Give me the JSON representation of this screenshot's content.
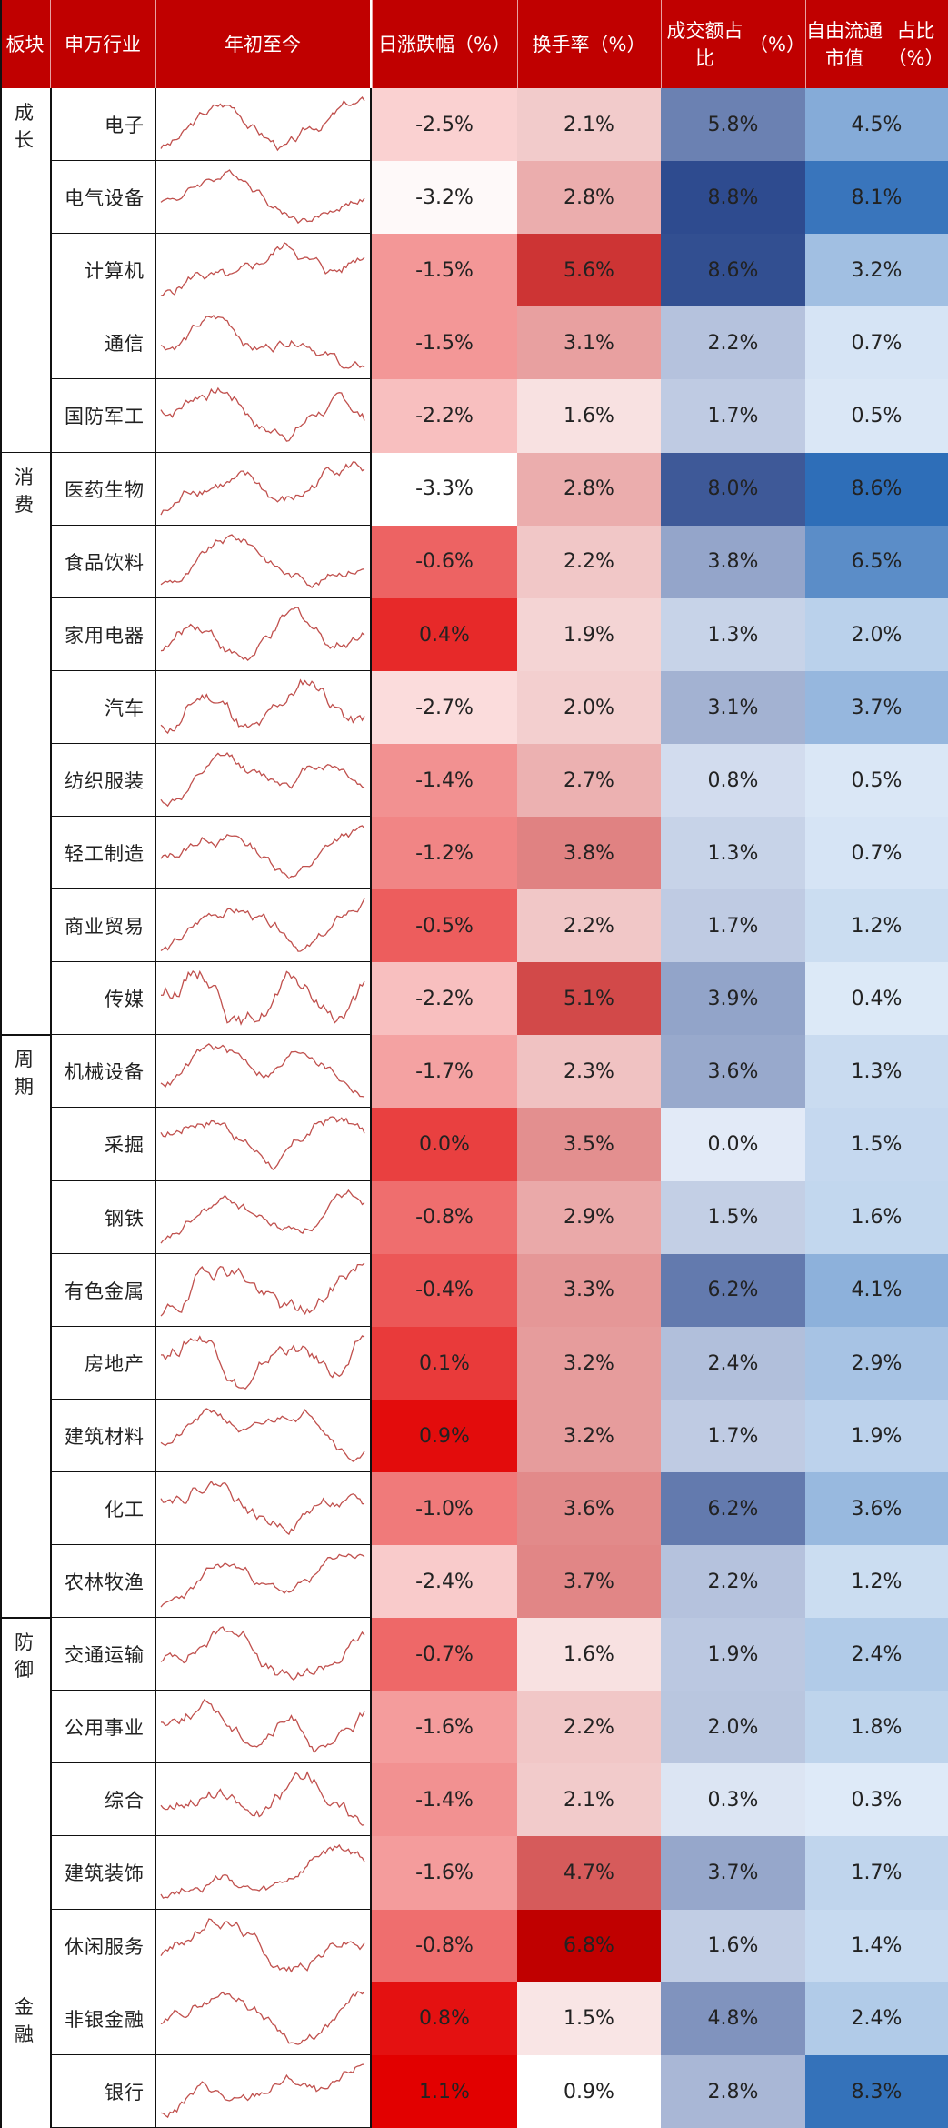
{
  "columns": {
    "sector": "板块",
    "industry": "申万行业",
    "ytd": "年初至今",
    "daily_change": "日涨跌幅\n（%）",
    "turnover": "换手率\n（%）",
    "volume_share": "成交额占比\n（%）",
    "float_cap_share": "自由流通市值\n占比（%）"
  },
  "colors": {
    "header_bg": "#c00000",
    "spark_line": "#c0504d",
    "red_max": "#e00000",
    "blue_max": "#2e4b8f"
  },
  "chart_data": {
    "type": "table",
    "sectors": [
      {
        "name": "成长",
        "start": 0,
        "count": 5
      },
      {
        "name": "消费",
        "start": 5,
        "count": 8
      },
      {
        "name": "周期",
        "start": 13,
        "count": 8
      },
      {
        "name": "防御",
        "start": 21,
        "count": 5
      },
      {
        "name": "金融",
        "start": 26,
        "count": 2
      }
    ],
    "rows": [
      {
        "industry": "电子",
        "daily_change": -2.5,
        "daily_change_label": "-2.5%",
        "turnover": 2.1,
        "turnover_label": "2.1%",
        "volume_share": 5.8,
        "volume_share_label": "5.8%",
        "float_cap_share": 4.5,
        "float_cap_share_label": "4.5%"
      },
      {
        "industry": "电气设备",
        "daily_change": -3.2,
        "daily_change_label": "-3.2%",
        "turnover": 2.8,
        "turnover_label": "2.8%",
        "volume_share": 8.8,
        "volume_share_label": "8.8%",
        "float_cap_share": 8.1,
        "float_cap_share_label": "8.1%"
      },
      {
        "industry": "计算机",
        "daily_change": -1.5,
        "daily_change_label": "-1.5%",
        "turnover": 5.6,
        "turnover_label": "5.6%",
        "volume_share": 8.6,
        "volume_share_label": "8.6%",
        "float_cap_share": 3.2,
        "float_cap_share_label": "3.2%"
      },
      {
        "industry": "通信",
        "daily_change": -1.5,
        "daily_change_label": "-1.5%",
        "turnover": 3.1,
        "turnover_label": "3.1%",
        "volume_share": 2.2,
        "volume_share_label": "2.2%",
        "float_cap_share": 0.7,
        "float_cap_share_label": "0.7%"
      },
      {
        "industry": "国防军工",
        "daily_change": -2.2,
        "daily_change_label": "-2.2%",
        "turnover": 1.6,
        "turnover_label": "1.6%",
        "volume_share": 1.7,
        "volume_share_label": "1.7%",
        "float_cap_share": 0.5,
        "float_cap_share_label": "0.5%"
      },
      {
        "industry": "医药生物",
        "daily_change": -3.3,
        "daily_change_label": "-3.3%",
        "turnover": 2.8,
        "turnover_label": "2.8%",
        "volume_share": 8.0,
        "volume_share_label": "8.0%",
        "float_cap_share": 8.6,
        "float_cap_share_label": "8.6%"
      },
      {
        "industry": "食品饮料",
        "daily_change": -0.6,
        "daily_change_label": "-0.6%",
        "turnover": 2.2,
        "turnover_label": "2.2%",
        "volume_share": 3.8,
        "volume_share_label": "3.8%",
        "float_cap_share": 6.5,
        "float_cap_share_label": "6.5%"
      },
      {
        "industry": "家用电器",
        "daily_change": 0.4,
        "daily_change_label": "0.4%",
        "turnover": 1.9,
        "turnover_label": "1.9%",
        "volume_share": 1.3,
        "volume_share_label": "1.3%",
        "float_cap_share": 2.0,
        "float_cap_share_label": "2.0%"
      },
      {
        "industry": "汽车",
        "daily_change": -2.7,
        "daily_change_label": "-2.7%",
        "turnover": 2.0,
        "turnover_label": "2.0%",
        "volume_share": 3.1,
        "volume_share_label": "3.1%",
        "float_cap_share": 3.7,
        "float_cap_share_label": "3.7%"
      },
      {
        "industry": "纺织服装",
        "daily_change": -1.4,
        "daily_change_label": "-1.4%",
        "turnover": 2.7,
        "turnover_label": "2.7%",
        "volume_share": 0.8,
        "volume_share_label": "0.8%",
        "float_cap_share": 0.5,
        "float_cap_share_label": "0.5%"
      },
      {
        "industry": "轻工制造",
        "daily_change": -1.2,
        "daily_change_label": "-1.2%",
        "turnover": 3.8,
        "turnover_label": "3.8%",
        "volume_share": 1.3,
        "volume_share_label": "1.3%",
        "float_cap_share": 0.7,
        "float_cap_share_label": "0.7%"
      },
      {
        "industry": "商业贸易",
        "daily_change": -0.5,
        "daily_change_label": "-0.5%",
        "turnover": 2.2,
        "turnover_label": "2.2%",
        "volume_share": 1.7,
        "volume_share_label": "1.7%",
        "float_cap_share": 1.2,
        "float_cap_share_label": "1.2%"
      },
      {
        "industry": "传媒",
        "daily_change": -2.2,
        "daily_change_label": "-2.2%",
        "turnover": 5.1,
        "turnover_label": "5.1%",
        "volume_share": 3.9,
        "volume_share_label": "3.9%",
        "float_cap_share": 0.4,
        "float_cap_share_label": "0.4%"
      },
      {
        "industry": "机械设备",
        "daily_change": -1.7,
        "daily_change_label": "-1.7%",
        "turnover": 2.3,
        "turnover_label": "2.3%",
        "volume_share": 3.6,
        "volume_share_label": "3.6%",
        "float_cap_share": 1.3,
        "float_cap_share_label": "1.3%"
      },
      {
        "industry": "采掘",
        "daily_change": 0.0,
        "daily_change_label": "0.0%",
        "turnover": 3.5,
        "turnover_label": "3.5%",
        "volume_share": 0.0,
        "volume_share_label": "0.0%",
        "float_cap_share": 1.5,
        "float_cap_share_label": "1.5%"
      },
      {
        "industry": "钢铁",
        "daily_change": -0.8,
        "daily_change_label": "-0.8%",
        "turnover": 2.9,
        "turnover_label": "2.9%",
        "volume_share": 1.5,
        "volume_share_label": "1.5%",
        "float_cap_share": 1.6,
        "float_cap_share_label": "1.6%"
      },
      {
        "industry": "有色金属",
        "daily_change": -0.4,
        "daily_change_label": "-0.4%",
        "turnover": 3.3,
        "turnover_label": "3.3%",
        "volume_share": 6.2,
        "volume_share_label": "6.2%",
        "float_cap_share": 4.1,
        "float_cap_share_label": "4.1%"
      },
      {
        "industry": "房地产",
        "daily_change": 0.1,
        "daily_change_label": "0.1%",
        "turnover": 3.2,
        "turnover_label": "3.2%",
        "volume_share": 2.4,
        "volume_share_label": "2.4%",
        "float_cap_share": 2.9,
        "float_cap_share_label": "2.9%"
      },
      {
        "industry": "建筑材料",
        "daily_change": 0.9,
        "daily_change_label": "0.9%",
        "turnover": 3.2,
        "turnover_label": "3.2%",
        "volume_share": 1.7,
        "volume_share_label": "1.7%",
        "float_cap_share": 1.9,
        "float_cap_share_label": "1.9%"
      },
      {
        "industry": "化工",
        "daily_change": -1.0,
        "daily_change_label": "-1.0%",
        "turnover": 3.6,
        "turnover_label": "3.6%",
        "volume_share": 6.2,
        "volume_share_label": "6.2%",
        "float_cap_share": 3.6,
        "float_cap_share_label": "3.6%"
      },
      {
        "industry": "农林牧渔",
        "daily_change": -2.4,
        "daily_change_label": "-2.4%",
        "turnover": 3.7,
        "turnover_label": "3.7%",
        "volume_share": 2.2,
        "volume_share_label": "2.2%",
        "float_cap_share": 1.2,
        "float_cap_share_label": "1.2%"
      },
      {
        "industry": "交通运输",
        "daily_change": -0.7,
        "daily_change_label": "-0.7%",
        "turnover": 1.6,
        "turnover_label": "1.6%",
        "volume_share": 1.9,
        "volume_share_label": "1.9%",
        "float_cap_share": 2.4,
        "float_cap_share_label": "2.4%"
      },
      {
        "industry": "公用事业",
        "daily_change": -1.6,
        "daily_change_label": "-1.6%",
        "turnover": 2.2,
        "turnover_label": "2.2%",
        "volume_share": 2.0,
        "volume_share_label": "2.0%",
        "float_cap_share": 1.8,
        "float_cap_share_label": "1.8%"
      },
      {
        "industry": "综合",
        "daily_change": -1.4,
        "daily_change_label": "-1.4%",
        "turnover": 2.1,
        "turnover_label": "2.1%",
        "volume_share": 0.3,
        "volume_share_label": "0.3%",
        "float_cap_share": 0.3,
        "float_cap_share_label": "0.3%"
      },
      {
        "industry": "建筑装饰",
        "daily_change": -1.6,
        "daily_change_label": "-1.6%",
        "turnover": 4.7,
        "turnover_label": "4.7%",
        "volume_share": 3.7,
        "volume_share_label": "3.7%",
        "float_cap_share": 1.7,
        "float_cap_share_label": "1.7%"
      },
      {
        "industry": "休闲服务",
        "daily_change": -0.8,
        "daily_change_label": "-0.8%",
        "turnover": 6.8,
        "turnover_label": "6.8%",
        "volume_share": 1.6,
        "volume_share_label": "1.6%",
        "float_cap_share": 1.4,
        "float_cap_share_label": "1.4%"
      },
      {
        "industry": "非银金融",
        "daily_change": 0.8,
        "daily_change_label": "0.8%",
        "turnover": 1.5,
        "turnover_label": "1.5%",
        "volume_share": 4.8,
        "volume_share_label": "4.8%",
        "float_cap_share": 2.4,
        "float_cap_share_label": "2.4%"
      },
      {
        "industry": "银行",
        "daily_change": 1.1,
        "daily_change_label": "1.1%",
        "turnover": 0.9,
        "turnover_label": "0.9%",
        "volume_share": 2.8,
        "volume_share_label": "2.8%",
        "float_cap_share": 8.3,
        "float_cap_share_label": "8.3%"
      }
    ]
  }
}
